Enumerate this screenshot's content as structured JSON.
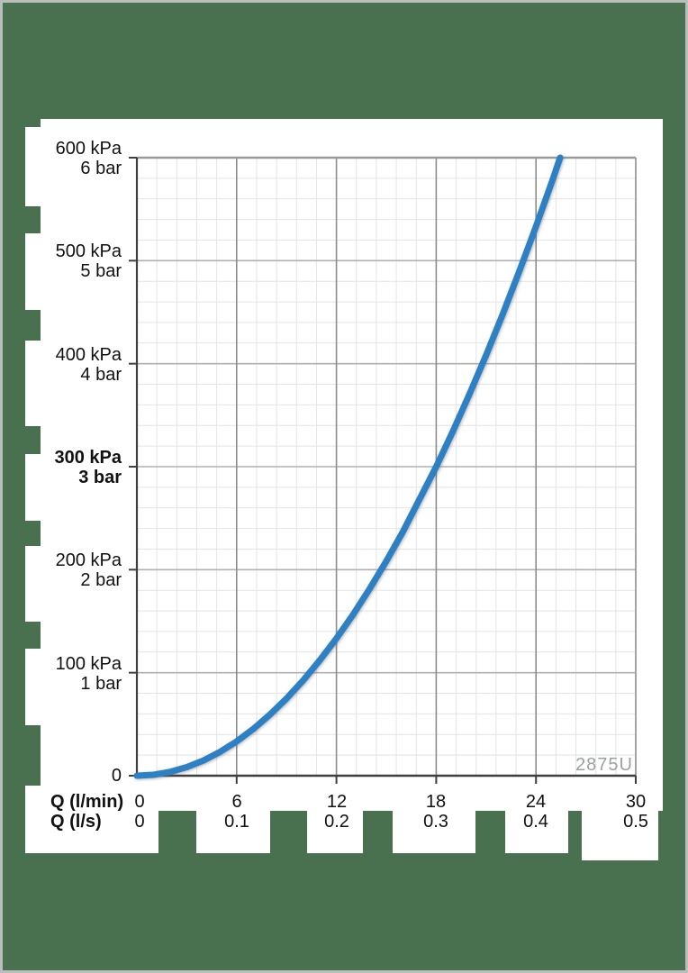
{
  "chart_data": {
    "type": "line",
    "title": "",
    "x_axis": {
      "primary_label": "Q (l/min)",
      "primary_ticks": [
        "0",
        "6",
        "12",
        "18",
        "24",
        "30"
      ],
      "secondary_label": "Q (l/s)",
      "secondary_ticks": [
        "0",
        "0.1",
        "0.2",
        "0.3",
        "0.4",
        "0.5"
      ],
      "range_lmin": [
        0,
        30
      ],
      "major_step_lmin": 6,
      "minor_step_lmin": 1.2
    },
    "y_axis": {
      "unit_primary": "kPa",
      "unit_secondary": "bar",
      "tick_pairs": [
        {
          "kpa": "600 kPa",
          "bar": "6 bar",
          "value": 600,
          "bold": false
        },
        {
          "kpa": "500 kPa",
          "bar": "5 bar",
          "value": 500,
          "bold": false
        },
        {
          "kpa": "400 kPa",
          "bar": "4 bar",
          "value": 400,
          "bold": false
        },
        {
          "kpa": "300 kPa",
          "bar": "3 bar",
          "value": 300,
          "bold": true
        },
        {
          "kpa": "200 kPa",
          "bar": "2 bar",
          "value": 200,
          "bold": false
        },
        {
          "kpa": "100 kPa",
          "bar": "1 bar",
          "value": 100,
          "bold": false
        }
      ],
      "zero_label": "0",
      "range_kpa": [
        0,
        600
      ],
      "major_step_kpa": 100,
      "minor_step_kpa": 20
    },
    "series": [
      {
        "name": "2875U",
        "color": "#2e80c4",
        "points_lmin_kpa": [
          [
            0,
            0
          ],
          [
            1,
            0.9
          ],
          [
            2,
            3.7
          ],
          [
            3,
            8.3
          ],
          [
            4,
            14.8
          ],
          [
            5,
            23.1
          ],
          [
            6,
            33.3
          ],
          [
            7,
            45.4
          ],
          [
            8,
            59.3
          ],
          [
            9,
            75.0
          ],
          [
            10,
            92.6
          ],
          [
            11,
            112.0
          ],
          [
            12,
            133.3
          ],
          [
            13,
            156.5
          ],
          [
            14,
            181.5
          ],
          [
            15,
            208.3
          ],
          [
            16,
            237.0
          ],
          [
            17,
            268.5
          ],
          [
            18,
            300.0
          ],
          [
            19,
            334.3
          ],
          [
            20,
            370.4
          ],
          [
            21,
            408.3
          ],
          [
            22,
            448.1
          ],
          [
            23,
            489.8
          ],
          [
            24,
            533.3
          ],
          [
            25,
            578.7
          ],
          [
            25.45,
            600
          ]
        ]
      }
    ],
    "annotation": "2875U",
    "grid": true,
    "legend": "none"
  },
  "colors": {
    "background_green": "#49714f",
    "sheet_white": "#ffffff",
    "curve_blue": "#2e80c4",
    "grid_minor": "#e4e4e4",
    "grid_major_h": "#b0b0b0",
    "grid_major_v": "#8c8c8c",
    "axis_dark": "#3f3f3f",
    "plot_border": "#9a9a9a",
    "annotation_gray": "#9ba1a4",
    "page_border": "#b9bdbb"
  }
}
